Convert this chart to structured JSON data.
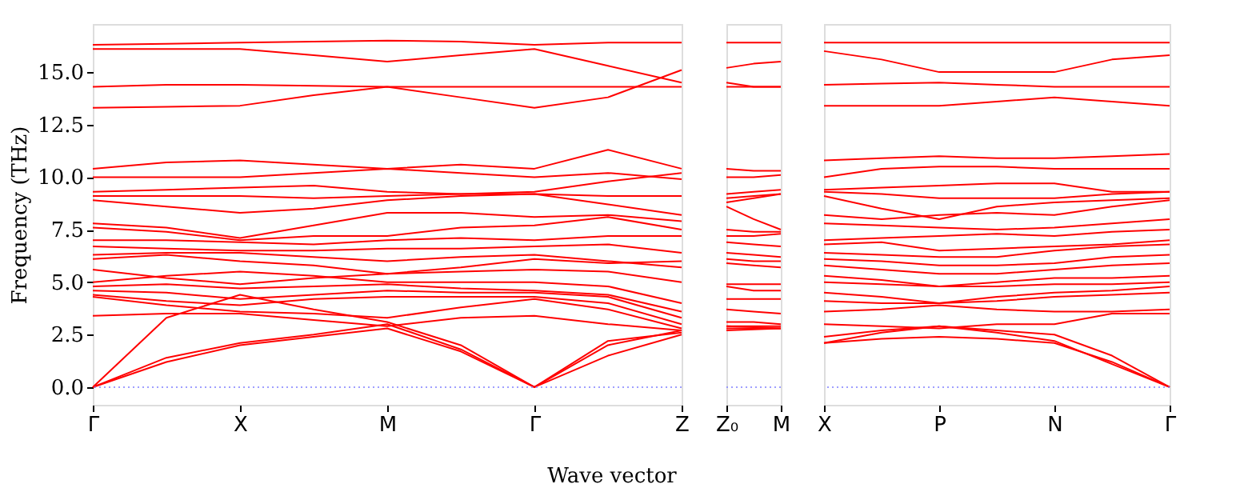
{
  "chart_data": [
    {
      "type": "line",
      "color": "#ff0000",
      "ylabel": "Frequency (THz)",
      "xlabel": "Wave vector",
      "categories": [
        "Γ",
        null,
        "X",
        null,
        "M",
        null,
        "Γ",
        null,
        "Z"
      ],
      "ylim": [
        -0.84,
        17.29
      ],
      "yticks": [
        {
          "value": 0,
          "label": "0.0"
        },
        {
          "value": 2.5,
          "label": "2.5"
        },
        {
          "value": 5,
          "label": "5.0"
        },
        {
          "value": 7.5,
          "label": "7.5"
        },
        {
          "value": 10,
          "label": "10.0"
        },
        {
          "value": 12.5,
          "label": "12.5"
        },
        {
          "value": 15,
          "label": "15.0"
        }
      ],
      "ref_lines": [
        {
          "axis": "y",
          "value": 0,
          "color": "#8080ff",
          "line_style": "dotted"
        }
      ],
      "series": [
        {
          "values": [
            16.3,
            16.35,
            16.4,
            16.45,
            16.5,
            16.45,
            16.3,
            16.4,
            16.4
          ]
        },
        {
          "values": [
            16.1,
            16.1,
            16.1,
            15.8,
            15.5,
            15.8,
            16.1,
            15.3,
            14.5
          ]
        },
        {
          "values": [
            14.3,
            14.4,
            14.4,
            14.35,
            14.3,
            14.3,
            14.3,
            14.3,
            14.3
          ]
        },
        {
          "values": [
            13.3,
            13.35,
            13.4,
            13.9,
            14.3,
            13.8,
            13.3,
            13.8,
            15.1
          ]
        },
        {
          "values": [
            10.4,
            10.7,
            10.8,
            10.6,
            10.4,
            10.6,
            10.4,
            11.3,
            10.4
          ]
        },
        {
          "values": [
            10.0,
            10.0,
            10.0,
            10.2,
            10.4,
            10.2,
            10.0,
            10.2,
            9.9
          ]
        },
        {
          "values": [
            9.3,
            9.4,
            9.5,
            9.6,
            9.3,
            9.2,
            9.3,
            9.8,
            10.2
          ]
        },
        {
          "values": [
            9.1,
            9.1,
            9.1,
            9.0,
            9.1,
            9.2,
            9.2,
            9.1,
            9.1
          ]
        },
        {
          "values": [
            8.9,
            8.6,
            8.3,
            8.5,
            8.9,
            9.1,
            9.2,
            8.7,
            8.2
          ]
        },
        {
          "values": [
            7.8,
            7.6,
            7.1,
            7.7,
            8.3,
            8.3,
            8.1,
            8.2,
            7.9
          ]
        },
        {
          "values": [
            7.6,
            7.4,
            7.0,
            7.2,
            7.2,
            7.6,
            7.7,
            8.1,
            7.5
          ]
        },
        {
          "values": [
            7.0,
            7.0,
            6.9,
            6.8,
            7.0,
            7.1,
            7.0,
            7.2,
            7.2
          ]
        },
        {
          "values": [
            6.7,
            6.6,
            6.5,
            6.5,
            6.6,
            6.6,
            6.7,
            6.8,
            6.4
          ]
        },
        {
          "values": [
            6.3,
            6.4,
            6.4,
            6.2,
            6.0,
            6.2,
            6.3,
            6.0,
            5.7
          ]
        },
        {
          "values": [
            6.1,
            6.3,
            6.0,
            5.8,
            5.4,
            5.7,
            6.1,
            5.9,
            6.0
          ]
        },
        {
          "values": [
            5.6,
            5.2,
            4.9,
            5.2,
            5.4,
            5.5,
            5.6,
            5.5,
            5.0
          ]
        },
        {
          "values": [
            5.0,
            5.3,
            5.5,
            5.3,
            5.0,
            5.0,
            5.0,
            4.8,
            4.0
          ]
        },
        {
          "values": [
            4.8,
            4.9,
            4.7,
            4.8,
            4.9,
            4.7,
            4.6,
            4.4,
            3.6
          ]
        },
        {
          "values": [
            4.6,
            4.5,
            4.2,
            4.4,
            4.6,
            4.5,
            4.5,
            4.3,
            3.3
          ]
        },
        {
          "values": [
            4.4,
            4.1,
            3.9,
            4.2,
            4.3,
            4.3,
            4.3,
            4.0,
            3.0
          ]
        },
        {
          "values": [
            4.3,
            3.9,
            3.6,
            3.5,
            3.3,
            3.8,
            4.2,
            3.7,
            2.8
          ]
        },
        {
          "values": [
            3.4,
            3.5,
            3.5,
            3.2,
            2.9,
            3.3,
            3.4,
            3.0,
            2.7
          ]
        },
        {
          "values": [
            0,
            3.3,
            4.4,
            3.7,
            3.1,
            2.0,
            0,
            2.2,
            2.6
          ]
        },
        {
          "values": [
            0,
            1.4,
            2.1,
            2.5,
            3.0,
            1.8,
            0,
            2.0,
            2.7
          ]
        },
        {
          "values": [
            0,
            1.2,
            2.0,
            2.4,
            2.8,
            1.7,
            0,
            1.5,
            2.5
          ]
        }
      ]
    },
    {
      "type": "line",
      "color": "#ff0000",
      "tick_labels": "x",
      "categories": [
        "Z₀",
        null,
        "M"
      ],
      "ylim": [
        -0.84,
        17.29
      ],
      "ref_lines": [
        {
          "axis": "y",
          "value": 0,
          "color": "#8080ff",
          "line_style": "dotted"
        }
      ],
      "series": [
        {
          "values": [
            16.4,
            16.4,
            16.4
          ]
        },
        {
          "values": [
            15.2,
            15.4,
            15.5
          ]
        },
        {
          "values": [
            14.5,
            14.3,
            14.3
          ]
        },
        {
          "values": [
            14.3,
            14.3,
            14.3
          ]
        },
        {
          "values": [
            10.4,
            10.3,
            10.3
          ]
        },
        {
          "values": [
            10.0,
            10.0,
            10.1
          ]
        },
        {
          "values": [
            9.2,
            9.3,
            9.4
          ]
        },
        {
          "values": [
            9.0,
            9.1,
            9.2
          ]
        },
        {
          "values": [
            8.8,
            9.0,
            9.2
          ]
        },
        {
          "values": [
            8.6,
            8.0,
            7.5
          ]
        },
        {
          "values": [
            7.5,
            7.4,
            7.4
          ]
        },
        {
          "values": [
            7.2,
            7.2,
            7.3
          ]
        },
        {
          "values": [
            6.9,
            6.8,
            6.7
          ]
        },
        {
          "values": [
            6.4,
            6.3,
            6.2
          ]
        },
        {
          "values": [
            6.1,
            6.0,
            6.0
          ]
        },
        {
          "values": [
            5.9,
            5.8,
            5.7
          ]
        },
        {
          "values": [
            4.9,
            4.9,
            4.9
          ]
        },
        {
          "values": [
            4.8,
            4.6,
            4.6
          ]
        },
        {
          "values": [
            4.2,
            4.2,
            4.2
          ]
        },
        {
          "values": [
            3.7,
            3.6,
            3.5
          ]
        },
        {
          "values": [
            3.1,
            3.1,
            3.0
          ]
        },
        {
          "values": [
            2.9,
            2.9,
            2.9
          ]
        },
        {
          "values": [
            2.9,
            2.85,
            2.8
          ]
        },
        {
          "values": [
            2.8,
            2.8,
            2.8
          ]
        },
        {
          "values": [
            2.7,
            2.75,
            2.8
          ]
        }
      ]
    },
    {
      "type": "line",
      "color": "#ff0000",
      "tick_labels": "x",
      "categories": [
        "X",
        null,
        "P",
        null,
        "N",
        null,
        "Γ"
      ],
      "ylim": [
        -0.84,
        17.29
      ],
      "ref_lines": [
        {
          "axis": "y",
          "value": 0,
          "color": "#8080ff",
          "line_style": "dotted"
        }
      ],
      "series": [
        {
          "values": [
            16.4,
            16.4,
            16.4,
            16.4,
            16.4,
            16.4,
            16.4
          ]
        },
        {
          "values": [
            16.0,
            15.6,
            15.0,
            15.0,
            15.0,
            15.6,
            15.8
          ]
        },
        {
          "values": [
            14.4,
            14.45,
            14.5,
            14.4,
            14.3,
            14.3,
            14.3
          ]
        },
        {
          "values": [
            13.4,
            13.4,
            13.4,
            13.6,
            13.8,
            13.6,
            13.4
          ]
        },
        {
          "values": [
            10.8,
            10.9,
            11.0,
            10.9,
            10.9,
            11.0,
            11.1
          ]
        },
        {
          "values": [
            10.0,
            10.4,
            10.5,
            10.5,
            10.4,
            10.4,
            10.4
          ]
        },
        {
          "values": [
            9.4,
            9.5,
            9.6,
            9.7,
            9.7,
            9.3,
            9.3
          ]
        },
        {
          "values": [
            9.3,
            9.2,
            9.0,
            9.0,
            9.0,
            9.2,
            9.3
          ]
        },
        {
          "values": [
            9.1,
            8.5,
            8.0,
            8.6,
            8.8,
            8.9,
            9.0
          ]
        },
        {
          "values": [
            8.2,
            8.0,
            8.2,
            8.3,
            8.2,
            8.6,
            8.9
          ]
        },
        {
          "values": [
            7.8,
            7.7,
            7.6,
            7.5,
            7.6,
            7.8,
            8.0
          ]
        },
        {
          "values": [
            7.0,
            7.1,
            7.2,
            7.3,
            7.2,
            7.4,
            7.5
          ]
        },
        {
          "values": [
            6.8,
            6.9,
            6.5,
            6.6,
            6.7,
            6.8,
            7.0
          ]
        },
        {
          "values": [
            6.4,
            6.3,
            6.2,
            6.2,
            6.5,
            6.7,
            6.8
          ]
        },
        {
          "values": [
            6.1,
            6.0,
            5.8,
            5.8,
            5.9,
            6.2,
            6.3
          ]
        },
        {
          "values": [
            5.8,
            5.6,
            5.4,
            5.4,
            5.6,
            5.8,
            5.9
          ]
        },
        {
          "values": [
            5.3,
            5.1,
            4.8,
            5.0,
            5.2,
            5.2,
            5.3
          ]
        },
        {
          "values": [
            5.0,
            4.9,
            4.8,
            4.8,
            4.9,
            4.9,
            5.0
          ]
        },
        {
          "values": [
            4.5,
            4.3,
            4.0,
            4.3,
            4.5,
            4.6,
            4.8
          ]
        },
        {
          "values": [
            4.1,
            4.0,
            4.0,
            4.1,
            4.3,
            4.4,
            4.5
          ]
        },
        {
          "values": [
            3.6,
            3.7,
            3.9,
            3.7,
            3.6,
            3.6,
            3.7
          ]
        },
        {
          "values": [
            3.0,
            2.9,
            2.8,
            3.0,
            3.0,
            3.5,
            3.5
          ]
        },
        {
          "values": [
            2.4,
            2.7,
            2.9,
            2.7,
            2.5,
            1.5,
            0
          ]
        },
        {
          "values": [
            2.1,
            2.3,
            2.4,
            2.3,
            2.1,
            1.2,
            0
          ]
        },
        {
          "values": [
            2.1,
            2.6,
            2.9,
            2.6,
            2.2,
            1.1,
            0
          ]
        }
      ]
    }
  ]
}
